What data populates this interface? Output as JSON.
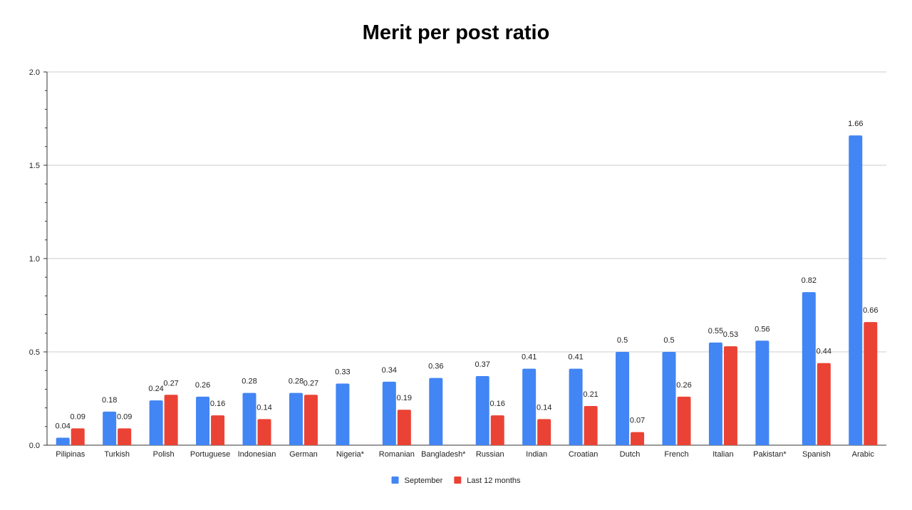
{
  "chart_data": {
    "type": "bar",
    "title": "Merit per post ratio",
    "xlabel": "",
    "ylabel": "",
    "ylim": [
      0,
      2.0
    ],
    "yticks": [
      0.0,
      0.5,
      1.0,
      1.5,
      2.0
    ],
    "ytick_labels": [
      "0.0",
      "0.5",
      "1.0",
      "1.5",
      "2.0"
    ],
    "grid": true,
    "legend_position": "bottom",
    "categories": [
      "Pilipinas",
      "Turkish",
      "Polish",
      "Portuguese",
      "Indonesian",
      "German",
      "Nigeria*",
      "Romanian",
      "Bangladesh*",
      "Russian",
      "Indian",
      "Croatian",
      "Dutch",
      "French",
      "Italian",
      "Pakistan*",
      "Spanish",
      "Arabic"
    ],
    "series": [
      {
        "name": "September",
        "color": "#4285f4",
        "values": [
          0.04,
          0.18,
          0.24,
          0.26,
          0.28,
          0.28,
          0.33,
          0.34,
          0.36,
          0.37,
          0.41,
          0.41,
          0.5,
          0.5,
          0.55,
          0.56,
          0.82,
          1.66
        ],
        "labels": [
          "0.04",
          "0.18",
          "0.24",
          "0.26",
          "0.28",
          "0.28",
          "0.33",
          "0.34",
          "0.36",
          "0.37",
          "0.41",
          "0.41",
          "0.5",
          "0.5",
          "0.55",
          "0.56",
          "0.82",
          "1.66"
        ]
      },
      {
        "name": "Last 12 months",
        "color": "#ea4335",
        "values": [
          0.09,
          0.09,
          0.27,
          0.16,
          0.14,
          0.27,
          null,
          0.19,
          null,
          0.16,
          0.14,
          0.21,
          0.07,
          0.26,
          0.53,
          null,
          0.44,
          0.66
        ],
        "labels": [
          "0.09",
          "0.09",
          "0.27",
          "0.16",
          "0.14",
          "0.27",
          "",
          "0.19",
          "",
          "0.16",
          "0.14",
          "0.21",
          "0.07",
          "0.26",
          "0.53",
          "",
          "0.44",
          "0.66"
        ]
      }
    ]
  }
}
